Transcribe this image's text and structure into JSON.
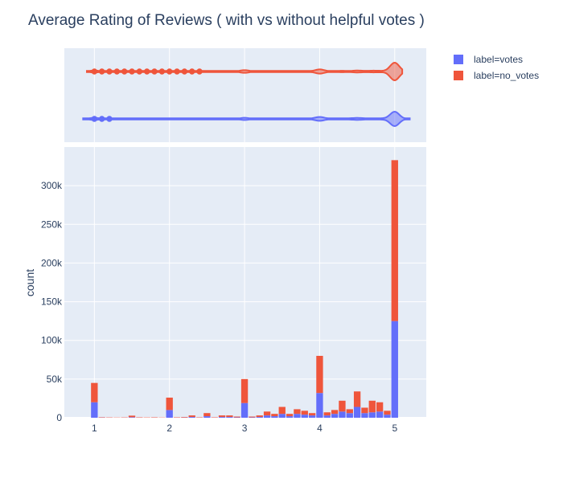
{
  "chart_data": {
    "type": "bar",
    "title": "Average Rating of Reviews ( with vs without helpful votes )",
    "xlabel": "",
    "ylabel": "count",
    "barmode": "stack",
    "xlim": [
      0.6,
      5.42
    ],
    "ylim": [
      0,
      350000
    ],
    "x_ticks": [
      1,
      2,
      3,
      4,
      5
    ],
    "x_tick_labels": [
      "1",
      "2",
      "3",
      "4",
      "5"
    ],
    "y_ticks": [
      0,
      50000,
      100000,
      150000,
      200000,
      250000,
      300000
    ],
    "y_tick_labels": [
      "0",
      "50k",
      "100k",
      "150k",
      "200k",
      "250k",
      "300k"
    ],
    "grid": true,
    "legend_position": "top-right",
    "bin_width": 0.1,
    "x": [
      1.0,
      1.1,
      1.2,
      1.3,
      1.4,
      1.5,
      1.6,
      1.7,
      1.8,
      1.9,
      2.0,
      2.1,
      2.2,
      2.3,
      2.4,
      2.5,
      2.6,
      2.7,
      2.8,
      2.9,
      3.0,
      3.1,
      3.2,
      3.3,
      3.4,
      3.5,
      3.6,
      3.7,
      3.8,
      3.9,
      4.0,
      4.1,
      4.2,
      4.3,
      4.4,
      4.5,
      4.6,
      4.7,
      4.8,
      4.9,
      5.0
    ],
    "series": [
      {
        "name": "label=votes",
        "color": "#636efa",
        "values": [
          20000,
          300,
          200,
          100,
          200,
          700,
          200,
          100,
          200,
          100,
          10000,
          200,
          300,
          1000,
          200,
          2000,
          200,
          1000,
          1000,
          500,
          19000,
          500,
          1000,
          3000,
          2000,
          5000,
          2000,
          5000,
          4000,
          3000,
          32000,
          3000,
          5000,
          8000,
          6000,
          14000,
          6000,
          7000,
          8000,
          4000,
          125000
        ]
      },
      {
        "name": "label=no_votes",
        "color": "#ef553b",
        "values": [
          25000,
          500,
          400,
          300,
          400,
          2000,
          500,
          400,
          500,
          300,
          16000,
          500,
          700,
          2000,
          500,
          4000,
          500,
          2000,
          2000,
          1000,
          31000,
          1000,
          2000,
          5000,
          3000,
          9000,
          3000,
          6000,
          5000,
          3000,
          48000,
          4000,
          5000,
          14000,
          5000,
          20000,
          7000,
          15000,
          12000,
          5000,
          208000
        ]
      }
    ],
    "violin": {
      "label=no_votes": {
        "color": "#ef553b",
        "outlier_points": [
          1.0,
          1.1,
          1.2,
          1.3,
          1.4,
          1.5,
          1.6,
          1.7,
          1.8,
          1.9,
          2.0,
          2.1,
          2.2,
          2.3,
          2.4
        ],
        "range": [
          0.9,
          5.1
        ]
      },
      "label=votes": {
        "color": "#636efa",
        "outlier_points": [
          1.0,
          1.1,
          1.2
        ],
        "range": [
          0.85,
          5.2
        ]
      }
    }
  }
}
